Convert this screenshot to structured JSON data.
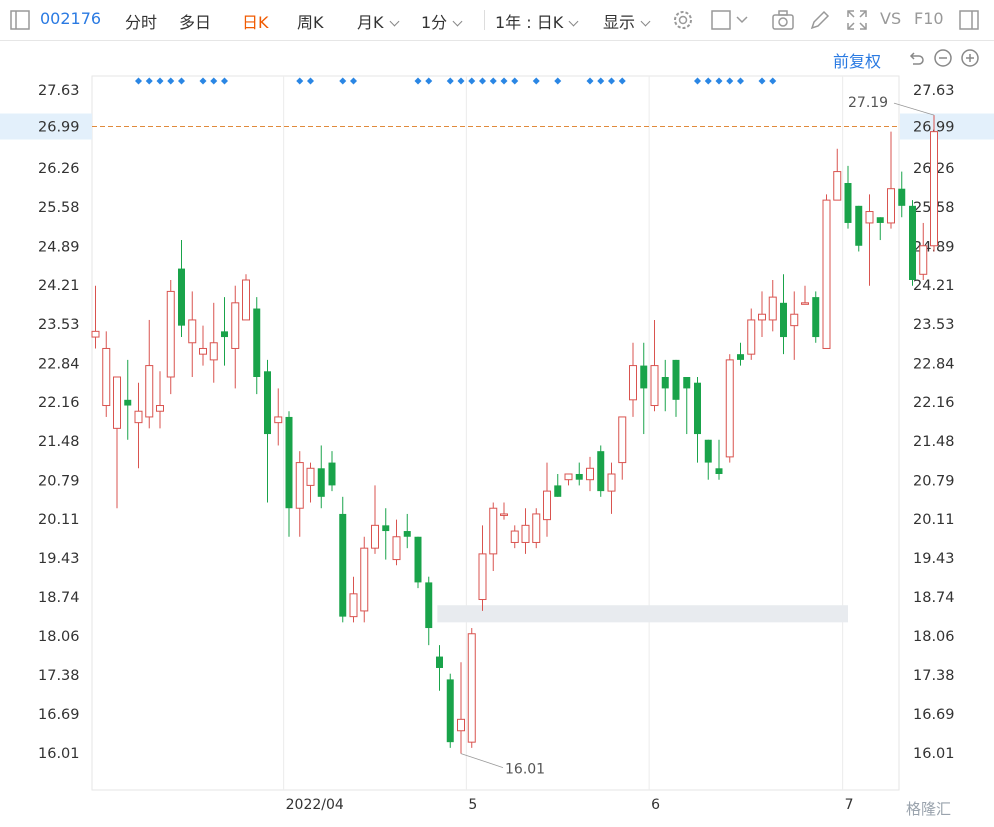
{
  "toolbar": {
    "code": "002176",
    "items": [
      "分时",
      "多日",
      "日K",
      "周K",
      "月K",
      "1分",
      "1年 : 日K",
      "显示"
    ],
    "active": "日K",
    "right_text": [
      "VS",
      "F10"
    ]
  },
  "panel": {
    "adjust_label": "前复权"
  },
  "watermark": "格隆汇",
  "colors": {
    "up": "#d9534f",
    "down": "#19a34a",
    "accent": "#2a7ae2",
    "ref_line": "#e08a3c",
    "marker": "#2a86e4"
  },
  "chart_data": {
    "type": "candlestick",
    "y_ticks": [
      "27.63",
      "26.99",
      "26.26",
      "25.58",
      "24.89",
      "24.21",
      "23.53",
      "22.84",
      "22.16",
      "21.48",
      "20.79",
      "20.11",
      "19.43",
      "18.74",
      "18.06",
      "17.38",
      "16.69",
      "16.01"
    ],
    "ylim": [
      16.01,
      27.63
    ],
    "x_labels": [
      {
        "label": "2022/04",
        "index": 17.5
      },
      {
        "label": "5",
        "index": 34.5
      },
      {
        "label": "6",
        "index": 51.5
      },
      {
        "label": "7",
        "index": 69.5
      }
    ],
    "ref_price": "26.99",
    "max_label": "27.19",
    "min_label": "16.01",
    "gap_zone": {
      "from": 31.8,
      "to": 70,
      "low": 18.3,
      "high": 18.6
    },
    "markers": [
      4,
      5,
      6,
      7,
      8,
      10,
      11,
      12,
      19,
      20,
      23,
      24,
      30,
      31,
      33,
      34,
      35,
      36,
      37,
      38,
      39,
      41,
      43,
      46,
      47,
      48,
      49,
      56,
      57,
      58,
      59,
      60,
      62,
      63
    ],
    "candles": [
      [
        23.3,
        23.4,
        24.2,
        23.1
      ],
      [
        22.1,
        23.1,
        23.4,
        21.9
      ],
      [
        21.7,
        22.6,
        22.6,
        20.3
      ],
      [
        22.2,
        22.1,
        22.9,
        21.5
      ],
      [
        21.8,
        22.0,
        22.5,
        21.0
      ],
      [
        21.9,
        22.8,
        23.6,
        21.7
      ],
      [
        22.0,
        22.1,
        22.7,
        21.7
      ],
      [
        22.6,
        24.1,
        24.3,
        22.3
      ],
      [
        24.5,
        23.5,
        25.0,
        23.3
      ],
      [
        23.2,
        23.6,
        24.1,
        22.6
      ],
      [
        23.0,
        23.1,
        23.5,
        22.8
      ],
      [
        22.9,
        23.2,
        23.9,
        22.5
      ],
      [
        23.4,
        23.3,
        24.0,
        22.8
      ],
      [
        23.1,
        23.9,
        24.2,
        22.4
      ],
      [
        23.6,
        24.3,
        24.4,
        23.8
      ],
      [
        23.8,
        22.6,
        24.0,
        22.3
      ],
      [
        22.7,
        21.6,
        22.9,
        20.4
      ],
      [
        21.8,
        21.9,
        22.4,
        21.4
      ],
      [
        21.9,
        20.3,
        22.0,
        19.8
      ],
      [
        20.3,
        21.1,
        21.3,
        19.8
      ],
      [
        20.7,
        21.0,
        21.1,
        20.4
      ],
      [
        21.0,
        20.5,
        21.4,
        20.3
      ],
      [
        21.1,
        20.7,
        21.3,
        20.6
      ],
      [
        20.2,
        18.4,
        20.5,
        18.3
      ],
      [
        18.4,
        18.8,
        19.1,
        18.3
      ],
      [
        18.5,
        19.6,
        19.8,
        18.3
      ],
      [
        19.6,
        20.0,
        20.7,
        19.5
      ],
      [
        20.0,
        19.9,
        20.3,
        19.4
      ],
      [
        19.4,
        19.8,
        20.1,
        19.3
      ],
      [
        19.9,
        19.8,
        20.2,
        19.6
      ],
      [
        19.8,
        19.0,
        19.8,
        18.9
      ],
      [
        19.0,
        18.2,
        19.1,
        17.9
      ],
      [
        17.7,
        17.5,
        17.9,
        17.1
      ],
      [
        17.3,
        16.2,
        17.4,
        16.1
      ],
      [
        16.4,
        16.6,
        17.6,
        16.0
      ],
      [
        16.2,
        18.1,
        18.2,
        16.1
      ],
      [
        18.7,
        19.5,
        20.0,
        18.5
      ],
      [
        19.5,
        20.3,
        20.4,
        19.2
      ],
      [
        20.2,
        20.2,
        20.4,
        20.1
      ],
      [
        19.7,
        19.9,
        20.0,
        19.6
      ],
      [
        19.7,
        20.0,
        20.3,
        19.5
      ],
      [
        19.7,
        20.2,
        20.3,
        19.6
      ],
      [
        20.1,
        20.6,
        21.1,
        19.8
      ],
      [
        20.7,
        20.5,
        20.9,
        20.5
      ],
      [
        20.8,
        20.9,
        20.9,
        20.7
      ],
      [
        20.9,
        20.8,
        21.1,
        20.7
      ],
      [
        20.8,
        21.0,
        21.2,
        20.6
      ],
      [
        21.3,
        20.6,
        21.4,
        20.5
      ],
      [
        20.6,
        20.9,
        21.1,
        20.2
      ],
      [
        21.1,
        21.9,
        21.8,
        20.8
      ],
      [
        22.2,
        22.8,
        23.2,
        21.9
      ],
      [
        22.8,
        22.4,
        23.2,
        21.6
      ],
      [
        22.1,
        22.8,
        23.6,
        22.0
      ],
      [
        22.6,
        22.4,
        22.9,
        22.0
      ],
      [
        22.9,
        22.2,
        22.9,
        21.9
      ],
      [
        22.6,
        22.4,
        22.6,
        21.6
      ],
      [
        22.5,
        21.6,
        22.6,
        21.1
      ],
      [
        21.5,
        21.1,
        21.5,
        20.8
      ],
      [
        21.0,
        20.9,
        21.5,
        20.8
      ],
      [
        21.2,
        22.9,
        23.0,
        21.1
      ],
      [
        23.0,
        22.9,
        23.2,
        22.8
      ],
      [
        23.0,
        23.6,
        23.8,
        22.9
      ],
      [
        23.6,
        23.7,
        24.1,
        23.3
      ],
      [
        23.6,
        24.0,
        24.3,
        23.4
      ],
      [
        23.9,
        23.3,
        24.4,
        23.0
      ],
      [
        23.5,
        23.7,
        24.1,
        22.9
      ],
      [
        23.9,
        23.9,
        24.2,
        23.9
      ],
      [
        24.0,
        23.3,
        24.1,
        23.2
      ],
      [
        23.1,
        25.7,
        25.8,
        23.1
      ],
      [
        25.7,
        26.2,
        26.6,
        25.7
      ],
      [
        26.0,
        25.3,
        26.3,
        25.2
      ],
      [
        25.6,
        24.9,
        25.6,
        24.8
      ],
      [
        25.3,
        25.5,
        25.8,
        24.2
      ],
      [
        25.4,
        25.3,
        25.4,
        25.0
      ],
      [
        25.3,
        25.9,
        26.9,
        25.2
      ],
      [
        25.9,
        25.6,
        26.2,
        25.4
      ],
      [
        25.6,
        24.3,
        25.7,
        24.2
      ],
      [
        24.4,
        24.9,
        25.3,
        24.3
      ],
      [
        24.9,
        26.9,
        27.19,
        24.8
      ]
    ]
  }
}
